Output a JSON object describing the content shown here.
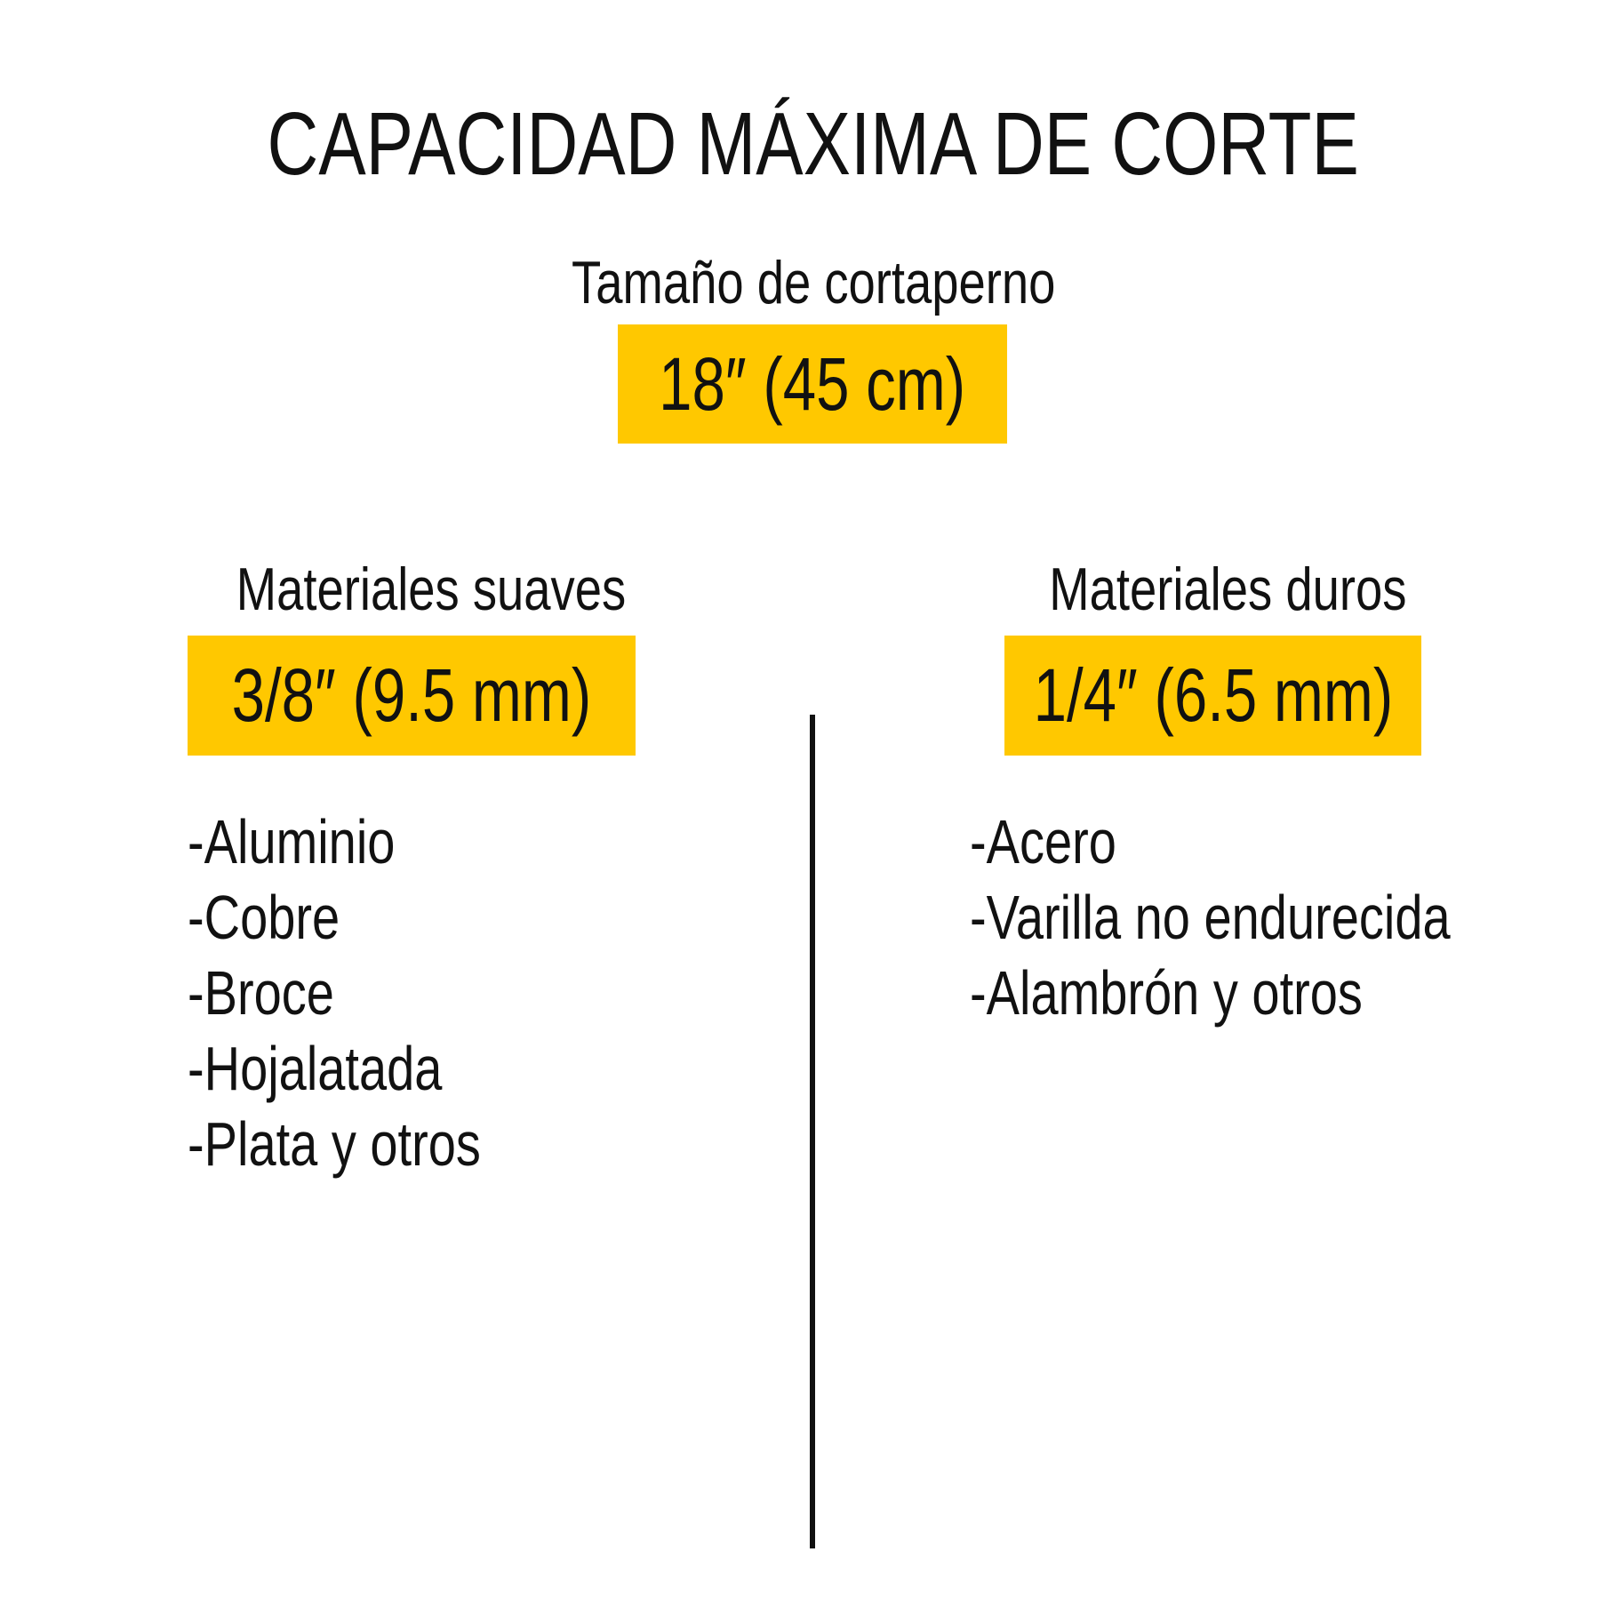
{
  "title": "CAPACIDAD MÁXIMA DE CORTE",
  "size_label": "Tamaño de cortaperno",
  "size_value": "18″ (45 cm)",
  "soft": {
    "heading": "Materiales suaves",
    "value": "3/8″ (9.5 mm)",
    "items": [
      "-Aluminio",
      "-Cobre",
      "-Broce",
      "-Hojalatada",
      "-Plata y otros"
    ]
  },
  "hard": {
    "heading": "Materiales duros",
    "value": "1/4″ (6.5 mm)",
    "items": [
      "-Acero",
      "-Varilla no endurecida",
      "-Alambrón y otros"
    ]
  },
  "colors": {
    "accent": "#ffc800",
    "text": "#111111"
  }
}
